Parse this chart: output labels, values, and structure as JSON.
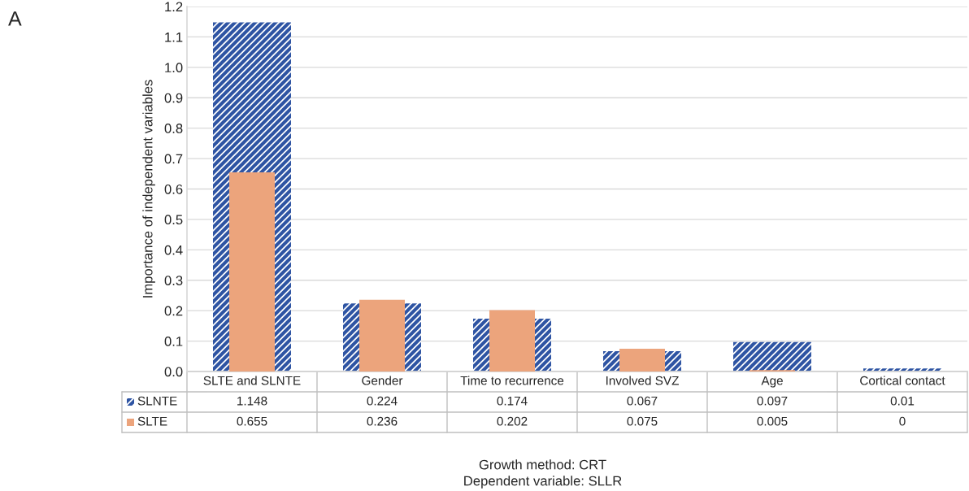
{
  "chart_data": {
    "type": "bar",
    "ylabel": "Importance of independent variables",
    "categories": [
      "SLTE and SLNTE",
      "Gender",
      "Time to recurrence",
      "Involved SVZ",
      "Age",
      "Cortical contact"
    ],
    "series": [
      {
        "name": "SLNTE",
        "color": "#2e54a3",
        "values": [
          1.148,
          0.224,
          0.174,
          0.067,
          0.097,
          0.01
        ]
      },
      {
        "name": "SLTE",
        "color": "#eca47c",
        "values": [
          0.655,
          0.236,
          0.202,
          0.075,
          0.005,
          0
        ]
      }
    ],
    "ylim": [
      0,
      1.2
    ],
    "yticks": [
      {
        "value": 0,
        "label": "0.0"
      },
      0.1,
      0.2,
      0.3,
      0.4,
      0.5,
      0.6,
      0.7,
      0.8,
      0.9,
      {
        "value": 1,
        "label": "1.0"
      },
      1.1,
      1.2
    ],
    "grid": "y",
    "legend": "bottom left",
    "data_labels": true,
    "annotations": [
      "A",
      "Growth method: CRT",
      "Dependent variable: SLLR"
    ]
  }
}
